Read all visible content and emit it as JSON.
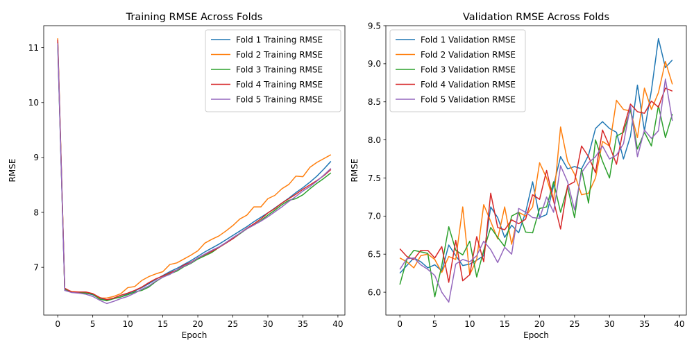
{
  "chart_data": [
    {
      "type": "line",
      "title": "Training RMSE Across Folds",
      "xlabel": "Epoch",
      "ylabel": "RMSE",
      "xlim": [
        -2,
        41
      ],
      "ylim": [
        6.13,
        11.4
      ],
      "xticks": [
        0,
        5,
        10,
        15,
        20,
        25,
        30,
        35,
        40
      ],
      "yticks": [
        7,
        8,
        9,
        10,
        11
      ],
      "grid": false,
      "legend_position": "top-right",
      "x": [
        0,
        1,
        2,
        3,
        4,
        5,
        6,
        7,
        8,
        9,
        10,
        11,
        12,
        13,
        14,
        15,
        16,
        17,
        18,
        19,
        20,
        21,
        22,
        23,
        24,
        25,
        26,
        27,
        28,
        29,
        30,
        31,
        32,
        33,
        34,
        35,
        36,
        37,
        38,
        39
      ],
      "series": [
        {
          "name": "Fold 1 Training RMSE",
          "color": "#1f77b4",
          "values": [
            11.05,
            6.58,
            6.55,
            6.54,
            6.53,
            6.5,
            6.43,
            6.4,
            6.43,
            6.46,
            6.52,
            6.57,
            6.63,
            6.7,
            6.78,
            6.85,
            6.92,
            6.98,
            7.05,
            7.12,
            7.2,
            7.28,
            7.35,
            7.42,
            7.5,
            7.58,
            7.66,
            7.74,
            7.83,
            7.91,
            7.99,
            8.08,
            8.17,
            8.26,
            8.36,
            8.45,
            8.55,
            8.66,
            8.79,
            8.93
          ]
        },
        {
          "name": "Fold 2 Training RMSE",
          "color": "#ff7f0e",
          "values": [
            11.17,
            6.6,
            6.56,
            6.55,
            6.55,
            6.52,
            6.44,
            6.44,
            6.47,
            6.52,
            6.63,
            6.65,
            6.76,
            6.83,
            6.88,
            6.92,
            7.05,
            7.08,
            7.15,
            7.22,
            7.3,
            7.44,
            7.51,
            7.57,
            7.66,
            7.76,
            7.88,
            7.95,
            8.1,
            8.1,
            8.25,
            8.31,
            8.43,
            8.51,
            8.66,
            8.65,
            8.82,
            8.91,
            8.98,
            9.05
          ]
        },
        {
          "name": "Fold 3 Training RMSE",
          "color": "#2ca02c",
          "values": [
            11.1,
            6.6,
            6.55,
            6.54,
            6.53,
            6.51,
            6.42,
            6.39,
            6.43,
            6.46,
            6.5,
            6.55,
            6.58,
            6.64,
            6.74,
            6.82,
            6.88,
            6.93,
            7.01,
            7.07,
            7.15,
            7.21,
            7.27,
            7.36,
            7.44,
            7.52,
            7.61,
            7.7,
            7.77,
            7.85,
            7.95,
            8.04,
            8.14,
            8.22,
            8.25,
            8.32,
            8.43,
            8.53,
            8.62,
            8.72
          ]
        },
        {
          "name": "Fold 4 Training RMSE",
          "color": "#d62728",
          "values": [
            11.14,
            6.62,
            6.55,
            6.55,
            6.55,
            6.52,
            6.45,
            6.41,
            6.44,
            6.49,
            6.53,
            6.58,
            6.64,
            6.72,
            6.79,
            6.84,
            6.9,
            6.95,
            7.04,
            7.09,
            7.17,
            7.23,
            7.29,
            7.36,
            7.44,
            7.52,
            7.62,
            7.71,
            7.79,
            7.88,
            7.99,
            8.07,
            8.17,
            8.25,
            8.33,
            8.42,
            8.5,
            8.58,
            8.67,
            8.78
          ]
        },
        {
          "name": "Fold 5 Training RMSE",
          "color": "#9467bd",
          "values": [
            11.08,
            6.58,
            6.54,
            6.53,
            6.51,
            6.47,
            6.4,
            6.34,
            6.38,
            6.43,
            6.47,
            6.53,
            6.6,
            6.66,
            6.75,
            6.82,
            6.87,
            6.95,
            7.02,
            7.08,
            7.17,
            7.24,
            7.31,
            7.37,
            7.45,
            7.54,
            7.62,
            7.7,
            7.77,
            7.84,
            7.92,
            8.01,
            8.1,
            8.2,
            8.29,
            8.39,
            8.47,
            8.57,
            8.68,
            8.8
          ]
        }
      ]
    },
    {
      "type": "line",
      "title": "Validation RMSE Across Folds",
      "xlabel": "Epoch",
      "ylabel": "RMSE",
      "xlim": [
        -2,
        41
      ],
      "ylim": [
        5.7,
        9.5
      ],
      "xticks": [
        0,
        5,
        10,
        15,
        20,
        25,
        30,
        35,
        40
      ],
      "yticks": [
        6.0,
        6.5,
        7.0,
        7.5,
        8.0,
        8.5,
        9.0,
        9.5
      ],
      "ytick_labels": [
        "6.0",
        "6.5",
        "7.0",
        "7.5",
        "8.0",
        "8.5",
        "9.0",
        "9.5"
      ],
      "grid": false,
      "legend_position": "top-left",
      "x": [
        0,
        1,
        2,
        3,
        4,
        5,
        6,
        7,
        8,
        9,
        10,
        11,
        12,
        13,
        14,
        15,
        16,
        17,
        18,
        19,
        20,
        21,
        22,
        23,
        24,
        25,
        26,
        27,
        28,
        29,
        30,
        31,
        32,
        33,
        34,
        35,
        36,
        37,
        38,
        39
      ],
      "series": [
        {
          "name": "Fold 1 Validation RMSE",
          "color": "#1f77b4",
          "values": [
            6.25,
            6.35,
            6.45,
            6.4,
            6.32,
            6.36,
            6.28,
            6.62,
            6.48,
            6.35,
            6.37,
            6.42,
            6.48,
            7.12,
            6.98,
            6.72,
            6.88,
            6.78,
            7.05,
            7.45,
            6.98,
            7.02,
            7.4,
            7.78,
            7.62,
            7.65,
            7.62,
            7.8,
            8.15,
            8.24,
            8.15,
            8.1,
            7.75,
            8.05,
            8.72,
            8.12,
            8.65,
            9.33,
            8.95,
            9.05
          ]
        },
        {
          "name": "Fold 2 Validation RMSE",
          "color": "#ff7f0e",
          "values": [
            6.45,
            6.4,
            6.32,
            6.48,
            6.5,
            6.43,
            6.26,
            6.47,
            6.43,
            7.12,
            6.23,
            6.43,
            7.15,
            6.93,
            6.7,
            7.12,
            6.63,
            7.05,
            7.0,
            7.12,
            7.7,
            7.5,
            7.2,
            8.17,
            7.72,
            7.55,
            7.28,
            7.3,
            7.5,
            7.98,
            7.92,
            8.52,
            8.4,
            8.38,
            8.03,
            8.68,
            8.4,
            8.62,
            9.03,
            8.73
          ]
        },
        {
          "name": "Fold 3 Validation RMSE",
          "color": "#2ca02c",
          "values": [
            6.1,
            6.43,
            6.55,
            6.53,
            6.51,
            5.94,
            6.35,
            6.86,
            6.55,
            6.49,
            6.67,
            6.2,
            6.55,
            6.85,
            6.72,
            6.6,
            7.0,
            7.05,
            6.79,
            6.78,
            7.1,
            7.12,
            7.45,
            7.05,
            7.38,
            6.98,
            7.62,
            7.17,
            8.0,
            7.72,
            7.5,
            8.05,
            8.1,
            8.4,
            7.88,
            8.1,
            7.92,
            8.45,
            8.03,
            8.34
          ]
        },
        {
          "name": "Fold 4 Validation RMSE",
          "color": "#d62728",
          "values": [
            6.57,
            6.47,
            6.43,
            6.55,
            6.55,
            6.45,
            6.6,
            6.13,
            6.68,
            6.15,
            6.23,
            6.73,
            6.4,
            7.3,
            6.85,
            6.82,
            6.95,
            6.9,
            6.96,
            7.28,
            7.22,
            7.6,
            7.2,
            6.83,
            7.4,
            7.45,
            7.92,
            7.78,
            7.57,
            8.13,
            7.92,
            7.68,
            8.15,
            8.47,
            8.37,
            8.35,
            8.51,
            8.43,
            8.68,
            8.64
          ]
        },
        {
          "name": "Fold 5 Validation RMSE",
          "color": "#9467bd",
          "values": [
            6.3,
            6.44,
            6.45,
            6.36,
            6.3,
            6.22,
            6.0,
            5.87,
            6.37,
            6.43,
            6.4,
            6.48,
            6.67,
            6.56,
            6.39,
            6.59,
            6.5,
            7.1,
            7.05,
            6.98,
            6.97,
            7.25,
            7.05,
            7.66,
            7.45,
            7.08,
            7.57,
            7.7,
            7.78,
            7.92,
            7.75,
            7.8,
            7.95,
            8.45,
            7.78,
            8.13,
            8.02,
            8.12,
            8.8,
            8.25
          ]
        }
      ]
    }
  ]
}
